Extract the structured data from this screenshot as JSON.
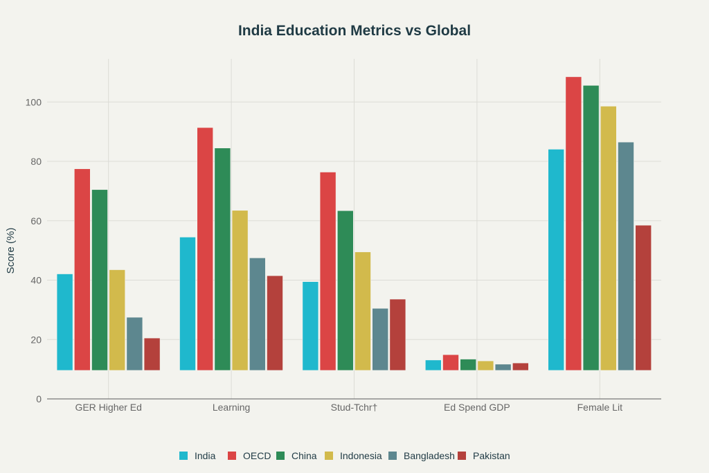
{
  "chart_data": {
    "type": "bar",
    "title": "India Education Metrics vs Global",
    "xlabel": "",
    "ylabel": "Score (%)",
    "ylim": [
      0,
      115
    ],
    "yticks": [
      0,
      20,
      40,
      60,
      80,
      100
    ],
    "bar_base": 9.6,
    "grid": true,
    "legend_placement": "bottom",
    "categories": [
      "GER Higher Ed",
      "Learning",
      "Stud-Tchr†",
      "Ed Spend GDP",
      "Female Lit"
    ],
    "series": [
      {
        "name": "India",
        "color": "#1fb8cd",
        "values": [
          42.1,
          54.5,
          39.5,
          13.1,
          84.1
        ]
      },
      {
        "name": "OECD",
        "color": "#db4545",
        "values": [
          77.5,
          91.4,
          76.4,
          14.9,
          108.5
        ]
      },
      {
        "name": "China",
        "color": "#2e8b57",
        "values": [
          70.5,
          84.5,
          63.4,
          13.4,
          105.6
        ]
      },
      {
        "name": "Indonesia",
        "color": "#d2ba4c",
        "values": [
          43.5,
          63.5,
          49.5,
          12.8,
          98.6
        ]
      },
      {
        "name": "Bangladesh",
        "color": "#5d878f",
        "values": [
          27.5,
          47.5,
          30.5,
          11.7,
          86.5
        ]
      },
      {
        "name": "Pakistan",
        "color": "#b4413c",
        "values": [
          20.5,
          41.5,
          33.6,
          12.1,
          58.5
        ]
      }
    ]
  }
}
